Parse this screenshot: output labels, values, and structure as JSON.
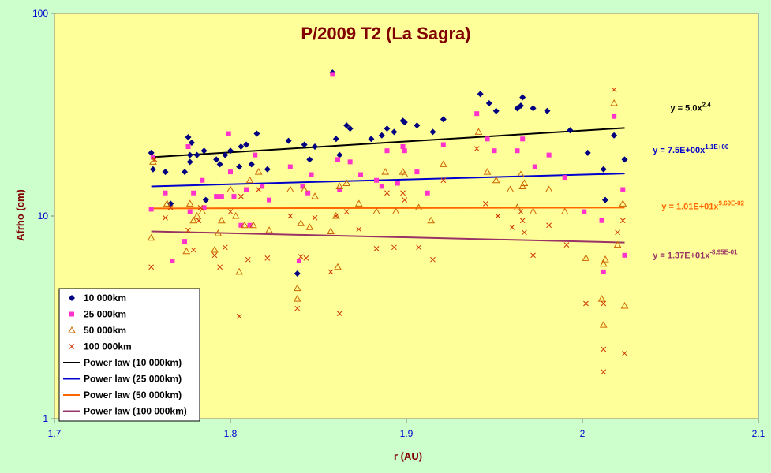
{
  "chart_data": {
    "type": "scatter",
    "title": "P/2009 T2 (La Sagra)",
    "xlabel": "r (AU)",
    "ylabel": "Afrho (cm)",
    "xlim": [
      1.7,
      2.1
    ],
    "ylim": [
      1,
      100
    ],
    "yscale": "log",
    "xticks": [
      "1.7",
      "1.8",
      "1.9",
      "2",
      "2.1"
    ],
    "yticks": [
      "1",
      "10",
      "100"
    ],
    "grid": false,
    "legend_position": "bottom-left",
    "plot_bg": "#ffff99",
    "page_bg": "#ccffcc",
    "series": [
      {
        "name": "10 000km",
        "marker": "diamond",
        "color": "#000080",
        "points": [
          [
            1.755,
            20.5
          ],
          [
            1.756,
            17
          ],
          [
            1.763,
            16.5
          ],
          [
            1.766,
            11.5
          ],
          [
            1.774,
            16.5
          ],
          [
            1.776,
            24.5
          ],
          [
            1.777,
            20
          ],
          [
            1.777,
            18.5
          ],
          [
            1.778,
            23
          ],
          [
            1.781,
            20
          ],
          [
            1.785,
            21
          ],
          [
            1.786,
            12
          ],
          [
            1.792,
            19
          ],
          [
            1.794,
            18
          ],
          [
            1.797,
            20
          ],
          [
            1.8,
            21
          ],
          [
            1.805,
            17.5
          ],
          [
            1.806,
            22
          ],
          [
            1.809,
            22.5
          ],
          [
            1.812,
            18
          ],
          [
            1.815,
            25.5
          ],
          [
            1.821,
            17
          ],
          [
            1.833,
            23.5
          ],
          [
            1.838,
            5.2
          ],
          [
            1.842,
            22.5
          ],
          [
            1.845,
            19
          ],
          [
            1.848,
            22
          ],
          [
            1.858,
            51
          ],
          [
            1.86,
            24
          ],
          [
            1.862,
            20
          ],
          [
            1.866,
            28
          ],
          [
            1.868,
            27
          ],
          [
            1.88,
            24
          ],
          [
            1.886,
            25
          ],
          [
            1.889,
            27
          ],
          [
            1.893,
            26
          ],
          [
            1.898,
            29.5
          ],
          [
            1.899,
            29
          ],
          [
            1.906,
            28
          ],
          [
            1.915,
            26
          ],
          [
            1.921,
            30
          ],
          [
            1.942,
            40
          ],
          [
            1.947,
            36
          ],
          [
            1.951,
            33
          ],
          [
            1.963,
            34
          ],
          [
            1.965,
            35
          ],
          [
            1.966,
            38.5
          ],
          [
            1.972,
            34
          ],
          [
            1.98,
            33
          ],
          [
            1.993,
            26.5
          ],
          [
            2.003,
            20.5
          ],
          [
            2.012,
            17
          ],
          [
            2.013,
            12
          ],
          [
            2.018,
            25
          ],
          [
            2.024,
            19
          ]
        ]
      },
      {
        "name": "25 000km",
        "marker": "square",
        "color": "#ff33cc",
        "points": [
          [
            1.755,
            10.8
          ],
          [
            1.756,
            19.5
          ],
          [
            1.763,
            13
          ],
          [
            1.767,
            6
          ],
          [
            1.774,
            7.5
          ],
          [
            1.776,
            22
          ],
          [
            1.777,
            10.5
          ],
          [
            1.779,
            13
          ],
          [
            1.784,
            15
          ],
          [
            1.785,
            11
          ],
          [
            1.792,
            12.5
          ],
          [
            1.795,
            12.5
          ],
          [
            1.799,
            25.5
          ],
          [
            1.8,
            16.5
          ],
          [
            1.802,
            12.5
          ],
          [
            1.806,
            9
          ],
          [
            1.809,
            13.5
          ],
          [
            1.811,
            9
          ],
          [
            1.814,
            20
          ],
          [
            1.818,
            14
          ],
          [
            1.822,
            12
          ],
          [
            1.834,
            17.5
          ],
          [
            1.839,
            6
          ],
          [
            1.841,
            14
          ],
          [
            1.844,
            13
          ],
          [
            1.846,
            16
          ],
          [
            1.858,
            50
          ],
          [
            1.861,
            19
          ],
          [
            1.862,
            13.5
          ],
          [
            1.868,
            18.5
          ],
          [
            1.874,
            16
          ],
          [
            1.883,
            15
          ],
          [
            1.886,
            14
          ],
          [
            1.889,
            21
          ],
          [
            1.895,
            14.5
          ],
          [
            1.898,
            22
          ],
          [
            1.899,
            21
          ],
          [
            1.906,
            16.5
          ],
          [
            1.912,
            13
          ],
          [
            1.921,
            22.5
          ],
          [
            1.94,
            32
          ],
          [
            1.946,
            24
          ],
          [
            1.95,
            21
          ],
          [
            1.963,
            21
          ],
          [
            1.966,
            24
          ],
          [
            1.973,
            17.5
          ],
          [
            1.981,
            20
          ],
          [
            1.99,
            15.5
          ],
          [
            2.001,
            10.5
          ],
          [
            2.011,
            9.5
          ],
          [
            2.012,
            5.3
          ],
          [
            2.018,
            31
          ],
          [
            2.023,
            13.5
          ],
          [
            2.024,
            6.4
          ]
        ]
      },
      {
        "name": "50 000km",
        "marker": "triangle",
        "color": "#cc6600",
        "points": [
          [
            1.755,
            7.8
          ],
          [
            1.756,
            18.5
          ],
          [
            1.764,
            11.5
          ],
          [
            1.775,
            6.7
          ],
          [
            1.777,
            11.5
          ],
          [
            1.779,
            9.5
          ],
          [
            1.781,
            10
          ],
          [
            1.784,
            10.5
          ],
          [
            1.791,
            6.8
          ],
          [
            1.793,
            8.2
          ],
          [
            1.795,
            9.5
          ],
          [
            1.8,
            13.5
          ],
          [
            1.803,
            10
          ],
          [
            1.805,
            5.3
          ],
          [
            1.808,
            9
          ],
          [
            1.811,
            15
          ],
          [
            1.813,
            9
          ],
          [
            1.816,
            16.5
          ],
          [
            1.822,
            8.5
          ],
          [
            1.834,
            13.5
          ],
          [
            1.838,
            3.9
          ],
          [
            1.838,
            4.4
          ],
          [
            1.84,
            9.2
          ],
          [
            1.842,
            13.5
          ],
          [
            1.845,
            8.8
          ],
          [
            1.848,
            12.5
          ],
          [
            1.857,
            8.4
          ],
          [
            1.86,
            10
          ],
          [
            1.861,
            5.6
          ],
          [
            1.862,
            14
          ],
          [
            1.866,
            14.5
          ],
          [
            1.873,
            11.5
          ],
          [
            1.883,
            10.5
          ],
          [
            1.888,
            16.5
          ],
          [
            1.894,
            10.5
          ],
          [
            1.898,
            16.5
          ],
          [
            1.899,
            16
          ],
          [
            1.907,
            11
          ],
          [
            1.914,
            9.5
          ],
          [
            1.921,
            18
          ],
          [
            1.941,
            26
          ],
          [
            1.946,
            16.5
          ],
          [
            1.951,
            15
          ],
          [
            1.959,
            13.5
          ],
          [
            1.963,
            11
          ],
          [
            1.965,
            16
          ],
          [
            1.966,
            14
          ],
          [
            1.967,
            14.5
          ],
          [
            1.972,
            10.5
          ],
          [
            1.981,
            13.5
          ],
          [
            1.99,
            10.5
          ],
          [
            2.002,
            6.2
          ],
          [
            2.011,
            3.9
          ],
          [
            2.012,
            2.9
          ],
          [
            2.012,
            5.8
          ],
          [
            2.013,
            6.1
          ],
          [
            2.018,
            36
          ],
          [
            2.02,
            7.2
          ],
          [
            2.023,
            11.5
          ],
          [
            2.024,
            3.6
          ]
        ]
      },
      {
        "name": "100 000km",
        "marker": "x",
        "color": "#cc3300",
        "points": [
          [
            1.755,
            5.6
          ],
          [
            1.757,
            19
          ],
          [
            1.763,
            9.8
          ],
          [
            1.766,
            11
          ],
          [
            1.776,
            8.5
          ],
          [
            1.779,
            6.8
          ],
          [
            1.782,
            9.5
          ],
          [
            1.783,
            11
          ],
          [
            1.791,
            6.4
          ],
          [
            1.794,
            5.6
          ],
          [
            1.797,
            7
          ],
          [
            1.8,
            10.5
          ],
          [
            1.805,
            3.2
          ],
          [
            1.806,
            12.5
          ],
          [
            1.81,
            6.1
          ],
          [
            1.816,
            13.5
          ],
          [
            1.821,
            6.2
          ],
          [
            1.834,
            10
          ],
          [
            1.838,
            3.5
          ],
          [
            1.84,
            6.3
          ],
          [
            1.843,
            6.2
          ],
          [
            1.848,
            9.8
          ],
          [
            1.857,
            5.3
          ],
          [
            1.86,
            10
          ],
          [
            1.862,
            3.3
          ],
          [
            1.866,
            10.5
          ],
          [
            1.873,
            8.6
          ],
          [
            1.883,
            6.9
          ],
          [
            1.889,
            13
          ],
          [
            1.893,
            7
          ],
          [
            1.898,
            13
          ],
          [
            1.899,
            12
          ],
          [
            1.907,
            7
          ],
          [
            1.915,
            6.1
          ],
          [
            1.921,
            15
          ],
          [
            1.94,
            21.5
          ],
          [
            1.945,
            11.5
          ],
          [
            1.952,
            10
          ],
          [
            1.96,
            8.8
          ],
          [
            1.965,
            10.5
          ],
          [
            1.966,
            9.5
          ],
          [
            1.967,
            8.3
          ],
          [
            1.972,
            6.4
          ],
          [
            1.981,
            9
          ],
          [
            1.991,
            7.2
          ],
          [
            2.002,
            3.7
          ],
          [
            2.012,
            3.7
          ],
          [
            2.012,
            2.2
          ],
          [
            2.012,
            1.7
          ],
          [
            2.018,
            42
          ],
          [
            2.02,
            8.3
          ],
          [
            2.023,
            9.5
          ],
          [
            2.024,
            2.1
          ]
        ]
      },
      {
        "name": "Power law (10 000km)",
        "type": "line",
        "color": "#000000",
        "x": [
          1.755,
          2.024
        ],
        "y": [
          19.5,
          27.2
        ]
      },
      {
        "name": "Power law (25 000km)",
        "type": "line",
        "color": "#0000cc",
        "x": [
          1.755,
          2.024
        ],
        "y": [
          14.0,
          16.2
        ]
      },
      {
        "name": "Power law (50 000km)",
        "type": "line",
        "color": "#ff6600",
        "x": [
          1.755,
          2.024
        ],
        "y": [
          10.9,
          11.0
        ]
      },
      {
        "name": "Power law (100 000km)",
        "type": "line",
        "color": "#993366",
        "x": [
          1.755,
          2.024
        ],
        "y": [
          8.4,
          7.4
        ]
      }
    ],
    "annotations": [
      {
        "base": "y = 5.0x",
        "exp": "2.4",
        "color": "#000000",
        "x": 2.05,
        "y": 33
      },
      {
        "base": "y = 7.5E+00x",
        "exp": "1.1E+00",
        "color": "#0000cc",
        "x": 2.04,
        "y": 20.5
      },
      {
        "base": "y = 1.01E+01x",
        "exp": "9.69E-02",
        "color": "#ff6600",
        "x": 2.045,
        "y": 10.8
      },
      {
        "base": "y = 1.37E+01x",
        "exp": "-8.95E-01",
        "color": "#993366",
        "x": 2.04,
        "y": 6.2
      }
    ]
  }
}
